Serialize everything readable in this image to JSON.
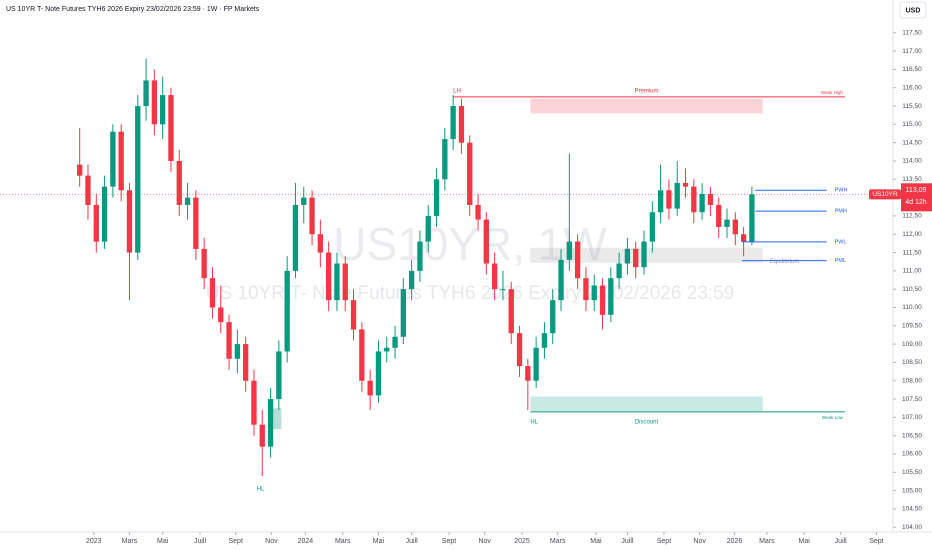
{
  "chart_data": {
    "type": "candlestick",
    "title": "US 10YR T- Note Futures TYH6 2026 Expiry 23/02/2026 23:59 · 1W · FP Markets",
    "watermark": "US10YR, 1W",
    "watermark_subtitle": "US 10YR T- Note Futures TYH6 2026 Expiry 23/02/2026 23:59",
    "currency": "USD",
    "symbol": "US10YR",
    "countdown": "4d 12h",
    "up_color": "#089981",
    "down_color": "#f23645",
    "candles": [
      [
        113.9,
        114.9,
        113.3,
        113.6
      ],
      [
        113.6,
        113.9,
        112.4,
        112.8
      ],
      [
        112.8,
        113.1,
        111.5,
        111.8
      ],
      [
        111.8,
        113.6,
        111.6,
        113.3
      ],
      [
        113.3,
        115.0,
        113.0,
        114.8
      ],
      [
        114.8,
        115.0,
        112.9,
        113.2
      ],
      [
        113.2,
        113.4,
        110.2,
        111.5
      ],
      [
        111.5,
        115.8,
        111.3,
        115.5
      ],
      [
        115.5,
        116.8,
        115.1,
        116.2
      ],
      [
        116.2,
        116.5,
        114.7,
        115.0
      ],
      [
        115.0,
        116.3,
        114.6,
        115.8
      ],
      [
        115.8,
        116.0,
        113.7,
        114.0
      ],
      [
        114.0,
        114.3,
        112.5,
        112.8
      ],
      [
        112.8,
        113.4,
        112.4,
        113.0
      ],
      [
        113.0,
        113.2,
        111.3,
        111.6
      ],
      [
        111.6,
        111.9,
        110.5,
        110.8
      ],
      [
        110.8,
        111.1,
        109.7,
        110.0
      ],
      [
        110.0,
        110.6,
        109.3,
        109.6
      ],
      [
        109.6,
        109.8,
        108.3,
        108.6
      ],
      [
        108.6,
        109.4,
        108.2,
        109.0
      ],
      [
        109.0,
        109.2,
        107.7,
        108.0
      ],
      [
        108.0,
        108.3,
        106.5,
        106.8
      ],
      [
        106.8,
        107.2,
        105.4,
        106.2
      ],
      [
        106.2,
        107.8,
        105.9,
        107.5
      ],
      [
        107.5,
        109.1,
        107.2,
        108.8
      ],
      [
        108.8,
        111.4,
        108.5,
        111.0
      ],
      [
        111.0,
        113.4,
        110.8,
        112.8
      ],
      [
        112.8,
        113.3,
        112.3,
        113.0
      ],
      [
        113.0,
        113.2,
        111.7,
        112.0
      ],
      [
        112.0,
        112.4,
        111.1,
        111.5
      ],
      [
        111.5,
        111.8,
        109.9,
        110.2
      ],
      [
        110.2,
        111.5,
        109.9,
        111.2
      ],
      [
        111.2,
        111.4,
        109.9,
        110.2
      ],
      [
        110.2,
        110.5,
        109.1,
        109.4
      ],
      [
        109.4,
        109.6,
        107.7,
        108.0
      ],
      [
        108.0,
        108.3,
        107.2,
        107.6
      ],
      [
        107.6,
        109.1,
        107.4,
        108.8
      ],
      [
        108.8,
        109.2,
        108.5,
        108.9
      ],
      [
        108.9,
        109.5,
        108.6,
        109.2
      ],
      [
        109.2,
        110.8,
        109.0,
        110.5
      ],
      [
        110.5,
        111.3,
        110.2,
        111.0
      ],
      [
        111.0,
        112.1,
        110.7,
        111.8
      ],
      [
        111.8,
        112.8,
        111.5,
        112.5
      ],
      [
        112.5,
        113.8,
        112.2,
        113.5
      ],
      [
        113.5,
        114.9,
        113.2,
        114.6
      ],
      [
        114.6,
        115.8,
        114.3,
        115.5
      ],
      [
        115.5,
        115.7,
        114.2,
        114.5
      ],
      [
        114.5,
        114.7,
        112.5,
        112.8
      ],
      [
        112.8,
        113.1,
        112.1,
        112.4
      ],
      [
        112.4,
        112.6,
        110.9,
        111.2
      ],
      [
        111.2,
        111.5,
        110.2,
        110.5
      ],
      [
        110.5,
        111.0,
        110.2,
        110.5
      ],
      [
        110.5,
        110.7,
        109.0,
        109.3
      ],
      [
        109.3,
        109.5,
        108.1,
        108.4
      ],
      [
        108.4,
        108.6,
        107.2,
        108.0
      ],
      [
        108.0,
        109.2,
        107.8,
        108.9
      ],
      [
        108.9,
        109.6,
        108.6,
        109.3
      ],
      [
        109.3,
        110.5,
        109.0,
        110.2
      ],
      [
        110.2,
        111.6,
        109.9,
        111.3
      ],
      [
        111.3,
        114.2,
        111.0,
        111.8
      ],
      [
        111.8,
        112.0,
        110.5,
        110.8
      ],
      [
        110.8,
        111.1,
        109.9,
        110.2
      ],
      [
        110.2,
        110.9,
        109.9,
        110.6
      ],
      [
        110.6,
        110.8,
        109.4,
        109.8
      ],
      [
        109.8,
        111.1,
        109.6,
        110.8
      ],
      [
        110.8,
        111.5,
        110.5,
        111.2
      ],
      [
        111.2,
        111.9,
        110.9,
        111.6
      ],
      [
        111.6,
        111.8,
        110.8,
        111.1
      ],
      [
        111.1,
        112.1,
        110.9,
        111.8
      ],
      [
        111.8,
        112.9,
        111.5,
        112.6
      ],
      [
        112.6,
        113.9,
        112.3,
        113.2
      ],
      [
        113.2,
        113.5,
        112.4,
        112.7
      ],
      [
        112.7,
        114.0,
        112.5,
        113.4
      ],
      [
        113.4,
        113.8,
        113.0,
        113.3
      ],
      [
        113.3,
        113.5,
        112.3,
        112.6
      ],
      [
        112.6,
        113.4,
        112.4,
        113.1
      ],
      [
        113.1,
        113.3,
        112.5,
        112.8
      ],
      [
        112.8,
        113.0,
        111.9,
        112.2
      ],
      [
        112.2,
        112.7,
        111.9,
        112.4
      ],
      [
        112.4,
        112.6,
        111.7,
        112.0
      ],
      [
        112.0,
        112.2,
        111.4,
        111.8
      ],
      [
        111.8,
        113.3,
        111.7,
        113.09
      ]
    ],
    "xlim": [
      -9.6,
      98
    ],
    "xticks": [
      {
        "value": 1.7,
        "label": "2023"
      },
      {
        "value": 6.0,
        "label": "Mars"
      },
      {
        "value": 10.0,
        "label": "Mai"
      },
      {
        "value": 14.5,
        "label": "Juill"
      },
      {
        "value": 18.8,
        "label": "Sept"
      },
      {
        "value": 23.1,
        "label": "Nov"
      },
      {
        "value": 27.2,
        "label": "2024"
      },
      {
        "value": 31.7,
        "label": "Mars"
      },
      {
        "value": 36.0,
        "label": "Mai"
      },
      {
        "value": 40.0,
        "label": "Juill"
      },
      {
        "value": 44.5,
        "label": "Sept"
      },
      {
        "value": 48.8,
        "label": "Nov"
      },
      {
        "value": 53.3,
        "label": "2025"
      },
      {
        "value": 57.6,
        "label": "Mars"
      },
      {
        "value": 62.2,
        "label": "Mai"
      },
      {
        "value": 66.0,
        "label": "Juill"
      },
      {
        "value": 70.4,
        "label": "Sept"
      },
      {
        "value": 74.7,
        "label": "Nov"
      },
      {
        "value": 78.9,
        "label": "2026"
      },
      {
        "value": 82.8,
        "label": "Mars"
      },
      {
        "value": 87.3,
        "label": "Mai"
      },
      {
        "value": 91.7,
        "label": "Juill"
      },
      {
        "value": 96.0,
        "label": "Sept"
      }
    ],
    "ylim": [
      103.87,
      118.1
    ],
    "yticks": [
      {
        "value": 104,
        "label": "104,00"
      },
      {
        "value": 104.5,
        "label": "104,50"
      },
      {
        "value": 105,
        "label": "105,00"
      },
      {
        "value": 105.5,
        "label": "105,50"
      },
      {
        "value": 106,
        "label": "106,00"
      },
      {
        "value": 106.5,
        "label": "106,50"
      },
      {
        "value": 107,
        "label": "107,00"
      },
      {
        "value": 107.5,
        "label": "107,50"
      },
      {
        "value": 108,
        "label": "108,00"
      },
      {
        "value": 108.5,
        "label": "108,50"
      },
      {
        "value": 109,
        "label": "109,00"
      },
      {
        "value": 109.5,
        "label": "109,50"
      },
      {
        "value": 110,
        "label": "110,00"
      },
      {
        "value": 110.5,
        "label": "110,50"
      },
      {
        "value": 111,
        "label": "111,00"
      },
      {
        "value": 111.5,
        "label": "111,50"
      },
      {
        "value": 112,
        "label": "112,00"
      },
      {
        "value": 112.5,
        "label": "112,50"
      },
      {
        "value": 113,
        "label": "113,00"
      },
      {
        "value": 113.5,
        "label": "113,50"
      },
      {
        "value": 114,
        "label": "114,00"
      },
      {
        "value": 114.5,
        "label": "114,50"
      },
      {
        "value": 115,
        "label": "115,00"
      },
      {
        "value": 115.5,
        "label": "115,50"
      },
      {
        "value": 116,
        "label": "116,00"
      },
      {
        "value": 116.5,
        "label": "116,50"
      },
      {
        "value": 117,
        "label": "117,00"
      },
      {
        "value": 117.5,
        "label": "117,50"
      }
    ],
    "last_price": {
      "value": 113.09,
      "label": "113,09"
    },
    "zones": [
      {
        "name": "Premium",
        "from": 115.3,
        "to": 115.7,
        "color": "#f23645"
      },
      {
        "name": "Equilibrium",
        "from": 111.22,
        "to": 111.63,
        "color": "#9e9e9e"
      },
      {
        "name": "Discount",
        "from": 107.17,
        "to": 107.57,
        "color": "#089981"
      }
    ],
    "swing_levels": [
      {
        "label": "LH",
        "side": "Weak High",
        "value": 115.75,
        "color": "#f23645"
      },
      {
        "label": "HL",
        "side": "Weak Low",
        "value": 107.15,
        "color": "#089981"
      }
    ],
    "levels": [
      {
        "name": "PWH",
        "value": 113.2
      },
      {
        "name": "PMH",
        "value": 112.63
      },
      {
        "name": "PWL",
        "value": 111.79
      },
      {
        "name": "PML",
        "value": 111.28
      }
    ],
    "level_color": "#2962ff",
    "order_block": {
      "from": 106.68,
      "to": 107.25,
      "color": "#089981"
    },
    "pivot_label": {
      "text": "HL",
      "value": 105.05
    }
  }
}
